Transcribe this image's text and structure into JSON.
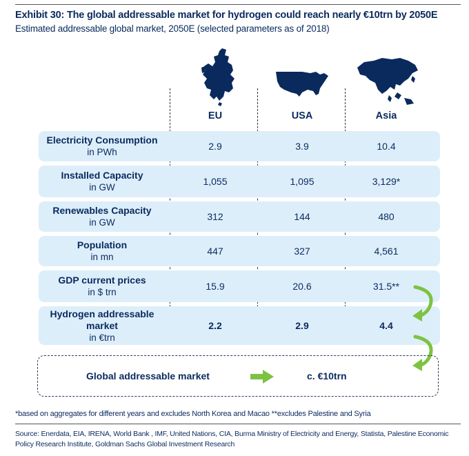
{
  "header": {
    "title": "Exhibit 30: The global addressable market for hydrogen could reach nearly €10trn by 2050E",
    "subtitle": "Estimated addressable global market, 2050E (selected parameters as of 2018)"
  },
  "chart_data": {
    "type": "table",
    "columns": [
      "EU",
      "USA",
      "Asia"
    ],
    "maps": [
      "eu-map-icon",
      "usa-map-icon",
      "asia-map-icon"
    ],
    "rows": [
      {
        "label": "Electricity Consumption",
        "unit": "in PWh",
        "values": [
          "2.9",
          "3.9",
          "10.4"
        ]
      },
      {
        "label": "Installed Capacity",
        "unit": "in GW",
        "values": [
          "1,055",
          "1,095",
          "3,129*"
        ]
      },
      {
        "label": "Renewables Capacity",
        "unit": "in GW",
        "values": [
          "312",
          "144",
          "480"
        ]
      },
      {
        "label": "Population",
        "unit": "in mn",
        "values": [
          "447",
          "327",
          "4,561"
        ]
      },
      {
        "label": "GDP current prices",
        "unit": "in $ trn",
        "values": [
          "15.9",
          "20.6",
          "31.5**"
        ]
      },
      {
        "label": "Hydrogen addressable market",
        "label_line1": "Hydrogen addressable",
        "label_line2": "market",
        "unit": "in €trn",
        "values": [
          "2.2",
          "2.9",
          "4.4"
        ]
      }
    ],
    "total": {
      "label": "Global addressable market",
      "value": "c. €10trn"
    }
  },
  "colors": {
    "navy": "#0a2a5e",
    "row_bg": "#ddeefb",
    "arrow_green": "#7dc242"
  },
  "footnote": "*based on aggregates for different years and excludes North Korea and Macao **excludes Palestine and Syria",
  "source": "Source: Enerdata, EIA, IRENA, World Bank , IMF, United Nations, CIA, Burma Ministry of Electricity and Energy, Statista, Palestine Economic Policy Research Institute, Goldman Sachs Global Investment Research"
}
